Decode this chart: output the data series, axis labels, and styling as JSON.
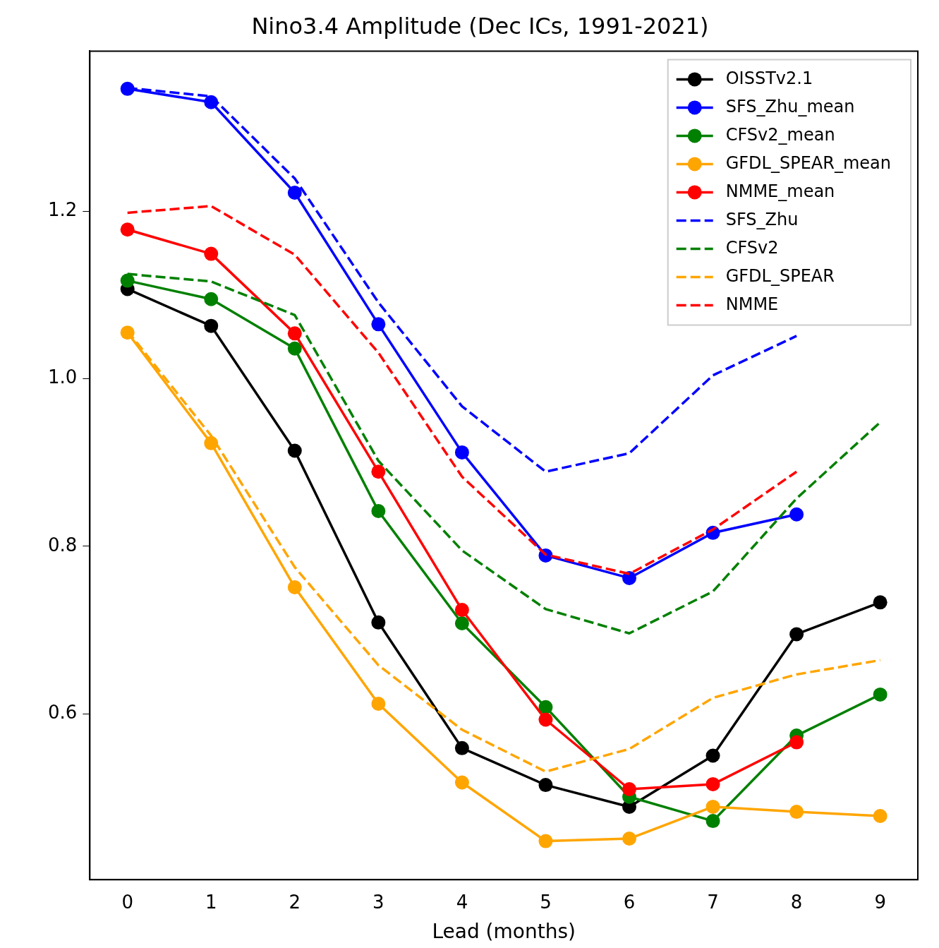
{
  "chart_data": {
    "type": "line",
    "title": "Nino3.4 Amplitude (Dec ICs, 1991-2021)",
    "xlabel": "Lead (months)",
    "x": [
      0,
      1,
      2,
      3,
      4,
      5,
      6,
      7,
      8,
      9
    ],
    "xlim": [
      -0.45,
      9.45
    ],
    "xticks": [
      0,
      1,
      2,
      3,
      4,
      5,
      6,
      7,
      8,
      9
    ],
    "ylim": [
      0.402,
      1.391
    ],
    "yticks": [
      0.6,
      0.8,
      {
        "value": 1.0,
        "label": "1.0"
      },
      1.2
    ],
    "grid": false,
    "legend": "top right",
    "series": [
      {
        "name": "OISSTv2.1",
        "color": "#000000",
        "marker": "circle",
        "line_style": "solid",
        "values": [
          1.107,
          1.063,
          0.914,
          0.709,
          0.559,
          0.515,
          0.489,
          0.55,
          0.695,
          0.733
        ]
      },
      {
        "name": "SFS_Zhu_mean",
        "color": "#0000ff",
        "marker": "circle",
        "line_style": "solid",
        "values": [
          1.346,
          1.33,
          1.222,
          1.065,
          0.912,
          0.789,
          0.762,
          0.816,
          0.838,
          null
        ]
      },
      {
        "name": "CFSv2_mean",
        "color": "#008000",
        "marker": "circle",
        "line_style": "solid",
        "values": [
          1.117,
          1.095,
          1.036,
          0.842,
          0.708,
          0.608,
          0.501,
          0.472,
          0.574,
          0.623
        ]
      },
      {
        "name": "GFDL_SPEAR_mean",
        "color": "#ffa500",
        "marker": "circle",
        "line_style": "solid",
        "values": [
          1.055,
          0.923,
          0.751,
          0.612,
          0.518,
          0.448,
          0.451,
          0.489,
          0.483,
          0.478
        ]
      },
      {
        "name": "NMME_mean",
        "color": "#ff0000",
        "marker": "circle",
        "line_style": "solid",
        "values": [
          1.178,
          1.149,
          1.054,
          0.889,
          0.724,
          0.593,
          0.51,
          0.516,
          0.566,
          null
        ]
      },
      {
        "name": "SFS_Zhu",
        "color": "#0000ff",
        "marker": "none",
        "line_style": "dashed",
        "values": [
          1.347,
          1.337,
          1.239,
          1.091,
          0.967,
          0.889,
          0.911,
          1.004,
          1.051,
          null
        ]
      },
      {
        "name": "CFSv2",
        "color": "#008000",
        "marker": "none",
        "line_style": "dashed",
        "values": [
          1.125,
          1.116,
          1.076,
          0.902,
          0.795,
          0.725,
          0.696,
          0.746,
          0.857,
          0.948
        ]
      },
      {
        "name": "GFDL_SPEAR",
        "color": "#ffa500",
        "marker": "none",
        "line_style": "dashed",
        "values": [
          1.057,
          0.932,
          0.775,
          0.658,
          0.581,
          0.531,
          0.558,
          0.619,
          0.647,
          0.664
        ]
      },
      {
        "name": "NMME",
        "color": "#ff0000",
        "marker": "none",
        "line_style": "dashed",
        "values": [
          1.198,
          1.206,
          1.148,
          1.031,
          0.883,
          0.79,
          0.767,
          0.82,
          0.889,
          null
        ]
      }
    ]
  }
}
